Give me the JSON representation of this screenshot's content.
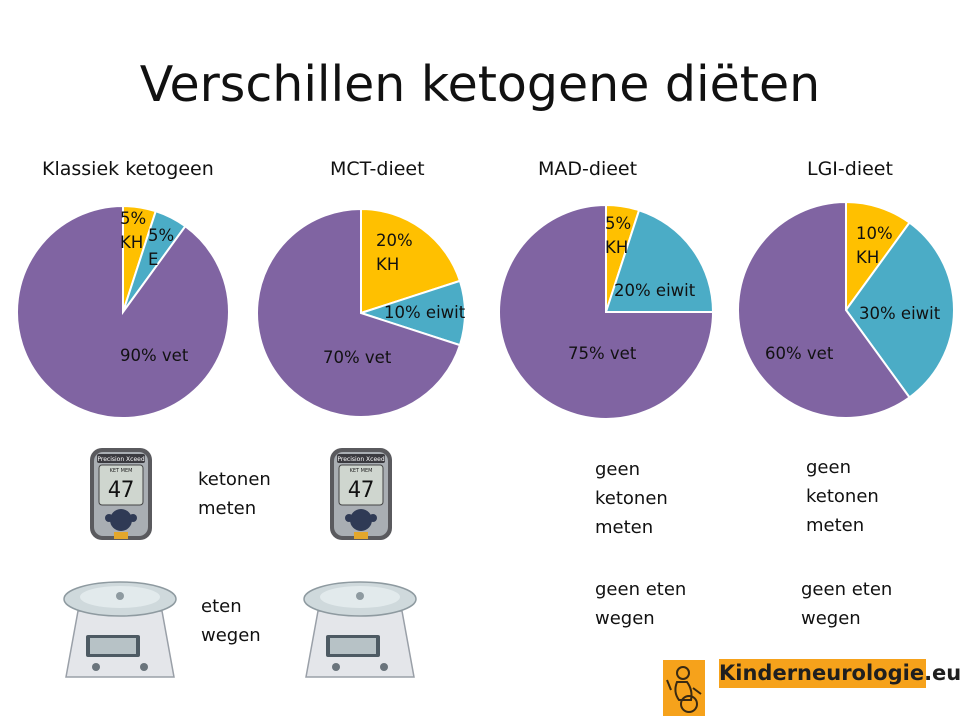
{
  "title": "Verschillen ketogene diëten",
  "colors": {
    "kh": "#FFC000",
    "eiwit": "#4BACC6",
    "vet": "#8064A2",
    "logo_bg": "#F6A21B"
  },
  "chart_data": [
    {
      "type": "pie",
      "title": "Klassiek ketogeen",
      "start_angle_deg": 0,
      "direction": "clockwise",
      "slices": [
        {
          "key": "kh",
          "value": 5,
          "label": [
            "5%",
            "KH"
          ]
        },
        {
          "key": "eiwit",
          "value": 5,
          "label": [
            "5%",
            "E"
          ]
        },
        {
          "key": "vet",
          "value": 90,
          "label": [
            "90% vet"
          ]
        }
      ]
    },
    {
      "type": "pie",
      "title": "MCT-dieet",
      "start_angle_deg": 0,
      "direction": "clockwise",
      "slices": [
        {
          "key": "kh",
          "value": 20,
          "label": [
            "20%",
            "KH"
          ]
        },
        {
          "key": "eiwit",
          "value": 10,
          "label": [
            "10% eiwit"
          ]
        },
        {
          "key": "vet",
          "value": 70,
          "label": [
            "70% vet"
          ]
        }
      ]
    },
    {
      "type": "pie",
      "title": "MAD-dieet",
      "start_angle_deg": 0,
      "direction": "clockwise",
      "slices": [
        {
          "key": "kh",
          "value": 5,
          "label": [
            "5%",
            "KH"
          ]
        },
        {
          "key": "eiwit",
          "value": 20,
          "label": [
            "20% eiwit"
          ]
        },
        {
          "key": "vet",
          "value": 75,
          "label": [
            "75% vet"
          ]
        }
      ]
    },
    {
      "type": "pie",
      "title": "LGI-dieet",
      "start_angle_deg": 0,
      "direction": "clockwise",
      "slices": [
        {
          "key": "kh",
          "value": 10,
          "label": [
            "10%",
            "KH"
          ]
        },
        {
          "key": "eiwit",
          "value": 30,
          "label": [
            "30% eiwit"
          ]
        },
        {
          "key": "vet",
          "value": 60,
          "label": [
            "60% vet"
          ]
        }
      ]
    }
  ],
  "meter": {
    "brand": "Precision Xceed",
    "screen_text": "KET MEM",
    "reading": "47"
  },
  "notes": {
    "ketonen_meten": "ketonen\nmeten",
    "eten_wegen": "eten\nwegen",
    "mad_geen_ketonen": "geen\nketonen\nmeten",
    "mad_geen_wegen": "geen eten\nwegen",
    "lgi_geen_ketonen": "geen\nketonen\nmeten",
    "lgi_geen_wegen": "geen eten\nwegen"
  },
  "logo": {
    "text": "Kinderneurologie.eu"
  }
}
